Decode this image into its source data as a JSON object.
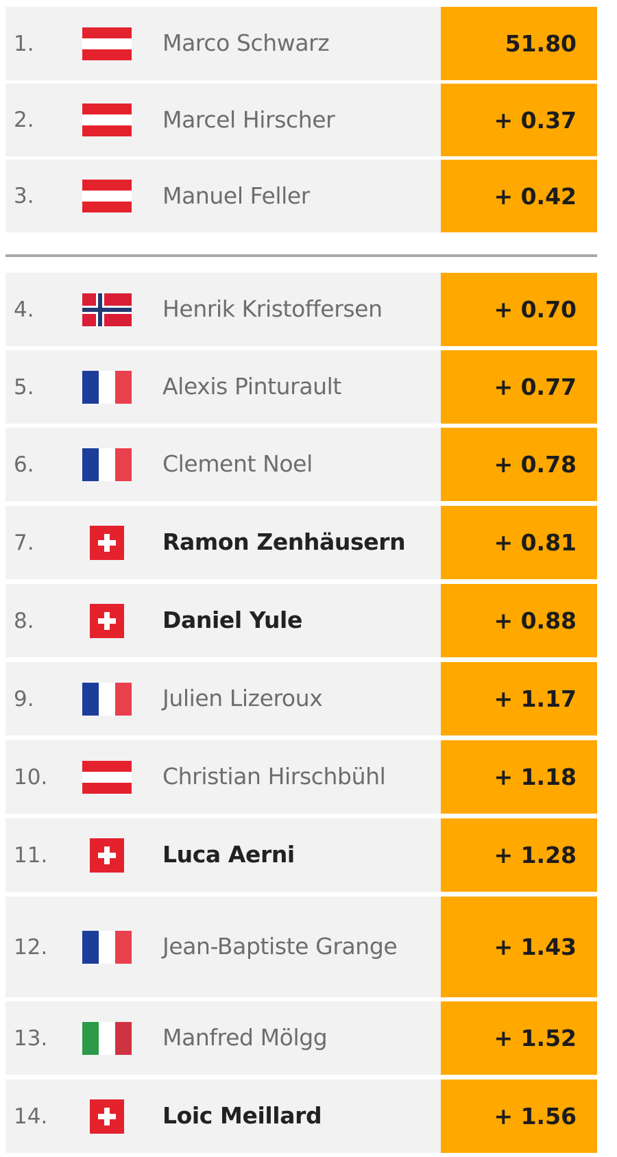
{
  "colors": {
    "time_background": "#ffa800",
    "row_background": "#f2f2f2",
    "divider": "#a9a9a9"
  },
  "rows": [
    {
      "rank": "1.",
      "flag": "austria-flag-icon",
      "name": "Marco Schwarz",
      "time": "51.80",
      "swiss": false
    },
    {
      "rank": "2.",
      "flag": "austria-flag-icon",
      "name": "Marcel Hirscher",
      "time": "+ 0.37",
      "swiss": false
    },
    {
      "rank": "3.",
      "flag": "austria-flag-icon",
      "name": "Manuel Feller",
      "time": "+ 0.42",
      "swiss": false
    },
    {
      "rank": "4.",
      "flag": "norway-flag-icon",
      "name": "Henrik Kristoffersen",
      "time": "+ 0.70",
      "swiss": false
    },
    {
      "rank": "5.",
      "flag": "france-flag-icon",
      "name": "Alexis Pinturault",
      "time": "+ 0.77",
      "swiss": false
    },
    {
      "rank": "6.",
      "flag": "france-flag-icon",
      "name": "Clement Noel",
      "time": "+ 0.78",
      "swiss": false
    },
    {
      "rank": "7.",
      "flag": "switzerland-flag-icon",
      "name": "Ramon Zenhäusern",
      "time": "+ 0.81",
      "swiss": true
    },
    {
      "rank": "8.",
      "flag": "switzerland-flag-icon",
      "name": "Daniel Yule",
      "time": "+ 0.88",
      "swiss": true
    },
    {
      "rank": "9.",
      "flag": "france-flag-icon",
      "name": "Julien Lizeroux",
      "time": "+ 1.17",
      "swiss": false
    },
    {
      "rank": "10.",
      "flag": "austria-flag-icon",
      "name": "Christian Hirschbühl",
      "time": "+ 1.18",
      "swiss": false
    },
    {
      "rank": "11.",
      "flag": "switzerland-flag-icon",
      "name": "Luca Aerni",
      "time": "+ 1.28",
      "swiss": true
    },
    {
      "rank": "12.",
      "flag": "france-flag-icon",
      "name": "Jean-Baptiste Grange",
      "time": "+ 1.43",
      "swiss": false
    },
    {
      "rank": "13.",
      "flag": "italy-flag-icon",
      "name": "Manfred Mölgg",
      "time": "+ 1.52",
      "swiss": false
    },
    {
      "rank": "14.",
      "flag": "switzerland-flag-icon",
      "name": "Loic Meillard",
      "time": "+ 1.56",
      "swiss": true
    }
  ]
}
